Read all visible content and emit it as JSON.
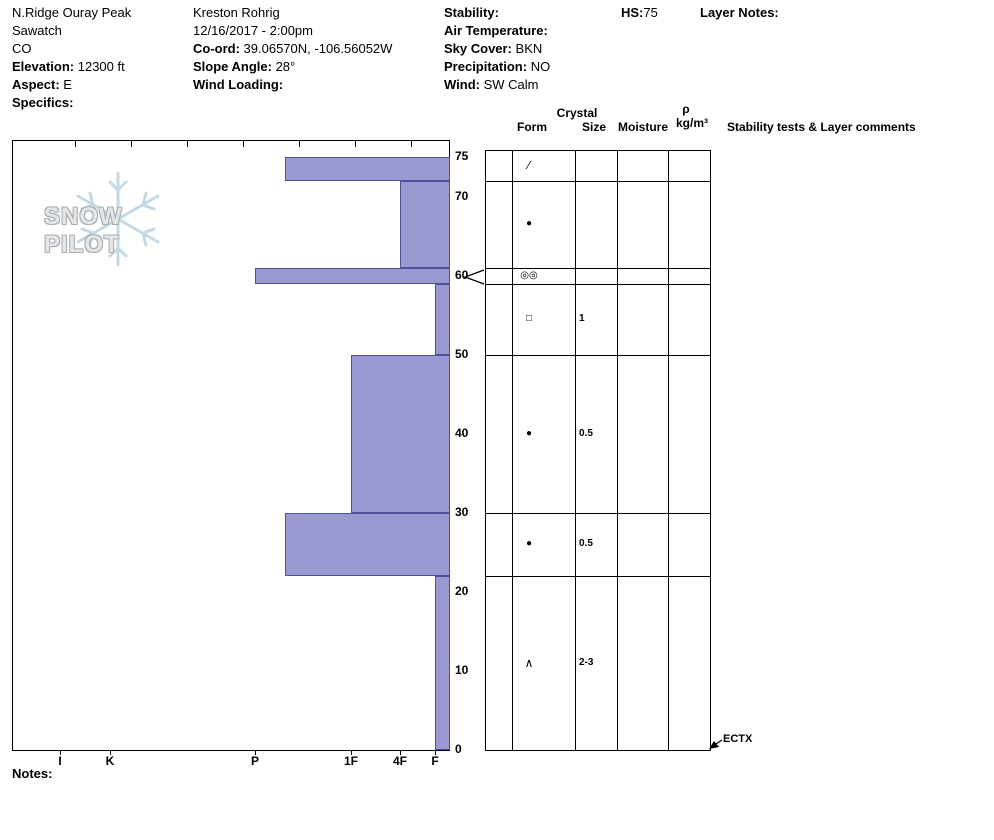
{
  "header": {
    "columns": [
      {
        "name": "location",
        "lines": [
          {
            "label": "",
            "value": "N.Ridge Ouray Peak"
          },
          {
            "label": "",
            "value": "Sawatch"
          },
          {
            "label": "",
            "value": "CO"
          },
          {
            "label": "Elevation:",
            "value": "12300 ft"
          },
          {
            "label": "Aspect:",
            "value": "E"
          },
          {
            "label": "Specifics:",
            "value": ""
          }
        ]
      },
      {
        "name": "observer",
        "lines": [
          {
            "label": "",
            "value": "Kreston Rohrig"
          },
          {
            "label": "",
            "value": "12/16/2017 - 2:00pm"
          },
          {
            "label": "Co-ord:",
            "value": "39.06570N, -106.56052W"
          },
          {
            "label": "Slope Angle:",
            "value": "28°"
          },
          {
            "label": "Wind Loading:",
            "value": ""
          }
        ]
      },
      {
        "name": "conditions",
        "lines": [
          {
            "label": "Stability:",
            "value": ""
          },
          {
            "label": "Air Temperature:",
            "value": ""
          },
          {
            "label": "Sky Cover:",
            "value": "BKN"
          },
          {
            "label": "Precipitation:",
            "value": "NO"
          },
          {
            "label": "Wind:",
            "value": "SW Calm"
          }
        ]
      }
    ],
    "hs_label": "HS:",
    "hs_value": "75",
    "layer_notes_label": "Layer Notes:"
  },
  "logo": {
    "text": "SNOW PILOT",
    "icon": "snowflake-icon"
  },
  "chart_data": {
    "type": "bar",
    "subtype": "snow-hardness-profile",
    "orientation": "horizontal bars by depth",
    "depth_axis": {
      "unit": "cm",
      "min": 0,
      "max": 75,
      "tick_values": [
        75,
        70,
        60,
        50,
        40,
        30,
        20,
        10,
        0
      ],
      "tick_labels": [
        "75",
        "70",
        "60",
        "50",
        "40",
        "30",
        "20",
        "10",
        "0"
      ]
    },
    "hardness_axis": {
      "tick_labels": [
        "I",
        "K",
        "P",
        "1F",
        "4F",
        "F"
      ],
      "note": "hand hardness, hardest (I) at left to softest (F) at right"
    },
    "hs_total_cm": 75,
    "layers": [
      {
        "top_cm": 75,
        "bottom_cm": 72,
        "hardness": "P-",
        "grain_form_glyph": "∕",
        "grain_size_mm": "",
        "moisture": "",
        "density": "",
        "comment": ""
      },
      {
        "top_cm": 72,
        "bottom_cm": 61,
        "hardness": "4F",
        "grain_form_glyph": "●",
        "grain_size_mm": "",
        "moisture": "",
        "density": "",
        "comment": ""
      },
      {
        "top_cm": 61,
        "bottom_cm": 59,
        "hardness": "P",
        "grain_form_glyph": "◎◎",
        "grain_size_mm": "",
        "moisture": "",
        "density": "",
        "comment": ""
      },
      {
        "top_cm": 59,
        "bottom_cm": 50,
        "hardness": "F",
        "grain_form_glyph": "□",
        "grain_size_mm": "1",
        "moisture": "",
        "density": "",
        "comment": ""
      },
      {
        "top_cm": 50,
        "bottom_cm": 30,
        "hardness": "1F",
        "grain_form_glyph": "●",
        "grain_size_mm": "0.5",
        "moisture": "",
        "density": "",
        "comment": ""
      },
      {
        "top_cm": 30,
        "bottom_cm": 22,
        "hardness": "P-",
        "grain_form_glyph": "●",
        "grain_size_mm": "0.5",
        "moisture": "",
        "density": "",
        "comment": ""
      },
      {
        "top_cm": 22,
        "bottom_cm": 0,
        "hardness": "F",
        "grain_form_glyph": "∧",
        "grain_size_mm": "2-3",
        "moisture": "",
        "density": "",
        "comment": ""
      }
    ],
    "flagged_layer_depth_cm": 60,
    "stability_tests": [
      {
        "result": "ECTX",
        "depth_cm": 0
      }
    ],
    "bar_fill": "#9B99D2",
    "bar_stroke": "#514F9C"
  },
  "grid": {
    "header_crystal": "Crystal",
    "header_form": "Form",
    "header_size": "Size",
    "header_moisture": "Moisture",
    "header_rho": "ρ",
    "header_rho_unit": "kg/m³",
    "header_comments": "Stability tests & Layer comments",
    "ectx_label": "ECTX"
  },
  "notes_label": "Notes:"
}
